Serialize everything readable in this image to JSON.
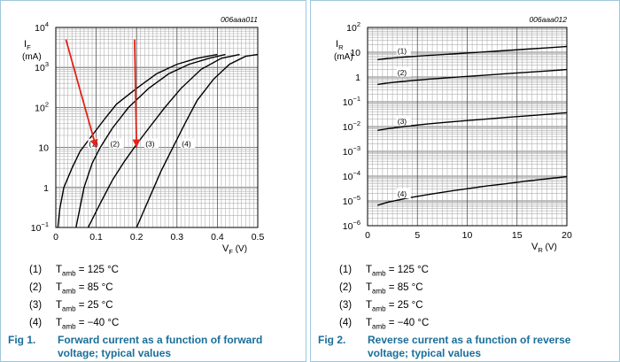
{
  "charts": [
    {
      "id": "forward",
      "code": "006aaa011",
      "type": "line",
      "x_scale": "linear",
      "y_scale": "log",
      "xlim": [
        0,
        0.5
      ],
      "ylim": [
        0.1,
        10000
      ],
      "x_ticks": [
        {
          "v": 0,
          "label": "0"
        },
        {
          "v": 0.1,
          "label": "0.1"
        },
        {
          "v": 0.2,
          "label": "0.2"
        },
        {
          "v": 0.3,
          "label": "0.3"
        },
        {
          "v": 0.4,
          "label": "0.4"
        },
        {
          "v": 0.5,
          "label": "0.5"
        }
      ],
      "y_ticks": [
        {
          "v": 0.1,
          "base": "10",
          "exp": "−1"
        },
        {
          "v": 1,
          "base": "1",
          "exp": ""
        },
        {
          "v": 10,
          "base": "10",
          "exp": ""
        },
        {
          "v": 100,
          "base": "10",
          "exp": "2"
        },
        {
          "v": 1000,
          "base": "10",
          "exp": "3"
        },
        {
          "v": 10000,
          "base": "10",
          "exp": "4"
        }
      ],
      "ylabel": "I",
      "ylabel_sub": "F",
      "yunit": "(mA)",
      "xlabel": "V",
      "xlabel_sub": "F",
      "xunit": " (V)",
      "series": [
        {
          "label": "(1)",
          "label_at": [
            0.082,
            10.5
          ],
          "points": [
            [
              0.005,
              0.1
            ],
            [
              0.01,
              0.3
            ],
            [
              0.02,
              1
            ],
            [
              0.04,
              3
            ],
            [
              0.06,
              8
            ],
            [
              0.09,
              20
            ],
            [
              0.12,
              50
            ],
            [
              0.15,
              120
            ],
            [
              0.2,
              300
            ],
            [
              0.25,
              700
            ],
            [
              0.3,
              1200
            ],
            [
              0.35,
              1700
            ],
            [
              0.4,
              2100
            ]
          ]
        },
        {
          "label": "(2)",
          "label_at": [
            0.135,
            10.5
          ],
          "points": [
            [
              0.05,
              0.1
            ],
            [
              0.07,
              1
            ],
            [
              0.09,
              4
            ],
            [
              0.11,
              10
            ],
            [
              0.14,
              30
            ],
            [
              0.18,
              100
            ],
            [
              0.23,
              300
            ],
            [
              0.28,
              700
            ],
            [
              0.33,
              1200
            ],
            [
              0.38,
              1700
            ],
            [
              0.42,
              2100
            ]
          ]
        },
        {
          "label": "(3)",
          "label_at": [
            0.222,
            10.5
          ],
          "points": [
            [
              0.08,
              0.1
            ],
            [
              0.11,
              0.4
            ],
            [
              0.14,
              1.5
            ],
            [
              0.17,
              4.5
            ],
            [
              0.2,
              12
            ],
            [
              0.23,
              30
            ],
            [
              0.27,
              100
            ],
            [
              0.31,
              300
            ],
            [
              0.36,
              900
            ],
            [
              0.41,
              1700
            ],
            [
              0.455,
              2100
            ]
          ]
        },
        {
          "label": "(4)",
          "label_at": [
            0.312,
            10.5
          ],
          "points": [
            [
              0.2,
              0.1
            ],
            [
              0.23,
              0.5
            ],
            [
              0.26,
              2.5
            ],
            [
              0.29,
              10
            ],
            [
              0.32,
              40
            ],
            [
              0.35,
              150
            ],
            [
              0.39,
              500
            ],
            [
              0.43,
              1200
            ],
            [
              0.47,
              1900
            ],
            [
              0.5,
              2100
            ]
          ]
        }
      ],
      "arrows": [
        {
          "from": [
            0.025,
            5000
          ],
          "to": [
            0.1,
            10
          ],
          "color": "#e32417"
        },
        {
          "from": [
            0.195,
            5000
          ],
          "to": [
            0.2,
            10
          ],
          "color": "#e32417"
        }
      ],
      "legend": [
        {
          "num": "(1)",
          "name": "T",
          "sub": "amb",
          "value": " = 125 °C"
        },
        {
          "num": "(2)",
          "name": "T",
          "sub": "amb",
          "value": " = 85 °C"
        },
        {
          "num": "(3)",
          "name": "T",
          "sub": "amb",
          "value": " = 25 °C"
        },
        {
          "num": "(4)",
          "name": "T",
          "sub": "amb",
          "value": " = −40 °C"
        }
      ],
      "caption_fig": "Fig 1.",
      "caption_text": "Forward current as a function of forward voltage; typical values"
    },
    {
      "id": "reverse",
      "code": "006aaa012",
      "type": "line",
      "x_scale": "linear",
      "y_scale": "log",
      "xlim": [
        0,
        20
      ],
      "ylim": [
        1e-06,
        100
      ],
      "x_ticks": [
        {
          "v": 0,
          "label": "0"
        },
        {
          "v": 5,
          "label": "5"
        },
        {
          "v": 10,
          "label": "10"
        },
        {
          "v": 15,
          "label": "15"
        },
        {
          "v": 20,
          "label": "20"
        }
      ],
      "y_ticks": [
        {
          "v": 1e-06,
          "base": "10",
          "exp": "−6"
        },
        {
          "v": 1e-05,
          "base": "10",
          "exp": "−5"
        },
        {
          "v": 0.0001,
          "base": "10",
          "exp": "−4"
        },
        {
          "v": 0.001,
          "base": "10",
          "exp": "−3"
        },
        {
          "v": 0.01,
          "base": "10",
          "exp": "−2"
        },
        {
          "v": 0.1,
          "base": "10",
          "exp": "−1"
        },
        {
          "v": 1,
          "base": "1",
          "exp": ""
        },
        {
          "v": 10,
          "base": "10",
          "exp": ""
        },
        {
          "v": 100,
          "base": "10",
          "exp": "2"
        }
      ],
      "ylabel": "I",
      "ylabel_sub": "R",
      "yunit": "(mA)",
      "xlabel": "V",
      "xlabel_sub": "R",
      "xunit": " (V)",
      "series": [
        {
          "label": "(1)",
          "label_at": [
            3,
            9
          ],
          "points": [
            [
              1,
              5
            ],
            [
              2,
              5.6
            ],
            [
              4,
              6.5
            ],
            [
              6,
              7.4
            ],
            [
              8,
              8.3
            ],
            [
              10,
              9.3
            ],
            [
              12,
              10.5
            ],
            [
              14,
              11.8
            ],
            [
              16,
              13.3
            ],
            [
              18,
              15
            ],
            [
              20,
              17
            ]
          ]
        },
        {
          "label": "(2)",
          "label_at": [
            3,
            1.2
          ],
          "points": [
            [
              1,
              0.5
            ],
            [
              2,
              0.57
            ],
            [
              4,
              0.69
            ],
            [
              6,
              0.81
            ],
            [
              8,
              0.93
            ],
            [
              10,
              1.06
            ],
            [
              12,
              1.2
            ],
            [
              14,
              1.37
            ],
            [
              16,
              1.55
            ],
            [
              18,
              1.75
            ],
            [
              20,
              2
            ]
          ]
        },
        {
          "label": "(3)",
          "label_at": [
            3,
            0.013
          ],
          "points": [
            [
              1,
              0.007
            ],
            [
              2,
              0.0082
            ],
            [
              4,
              0.0104
            ],
            [
              6,
              0.0127
            ],
            [
              8,
              0.015
            ],
            [
              10,
              0.0175
            ],
            [
              12,
              0.0203
            ],
            [
              14,
              0.0235
            ],
            [
              16,
              0.027
            ],
            [
              18,
              0.031
            ],
            [
              20,
              0.036
            ]
          ]
        },
        {
          "label": "(4)",
          "label_at": [
            3,
            1.5e-05
          ],
          "points": [
            [
              1,
              6.7e-06
            ],
            [
              2,
              8.8e-06
            ],
            [
              4,
              1.3e-05
            ],
            [
              6,
              1.8e-05
            ],
            [
              8,
              2.4e-05
            ],
            [
              10,
              3.1e-05
            ],
            [
              12,
              4e-05
            ],
            [
              14,
              5e-05
            ],
            [
              16,
              6.3e-05
            ],
            [
              18,
              7.8e-05
            ],
            [
              20,
              9.5e-05
            ]
          ]
        }
      ],
      "arrows": [],
      "legend": [
        {
          "num": "(1)",
          "name": "T",
          "sub": "amb",
          "value": " = 125 °C"
        },
        {
          "num": "(2)",
          "name": "T",
          "sub": "amb",
          "value": " = 85 °C"
        },
        {
          "num": "(3)",
          "name": "T",
          "sub": "amb",
          "value": " = 25 °C"
        },
        {
          "num": "(4)",
          "name": "T",
          "sub": "amb",
          "value": " = −40 °C"
        }
      ],
      "caption_fig": "Fig 2.",
      "caption_text": "Reverse current as a function of reverse voltage; typical values"
    }
  ]
}
